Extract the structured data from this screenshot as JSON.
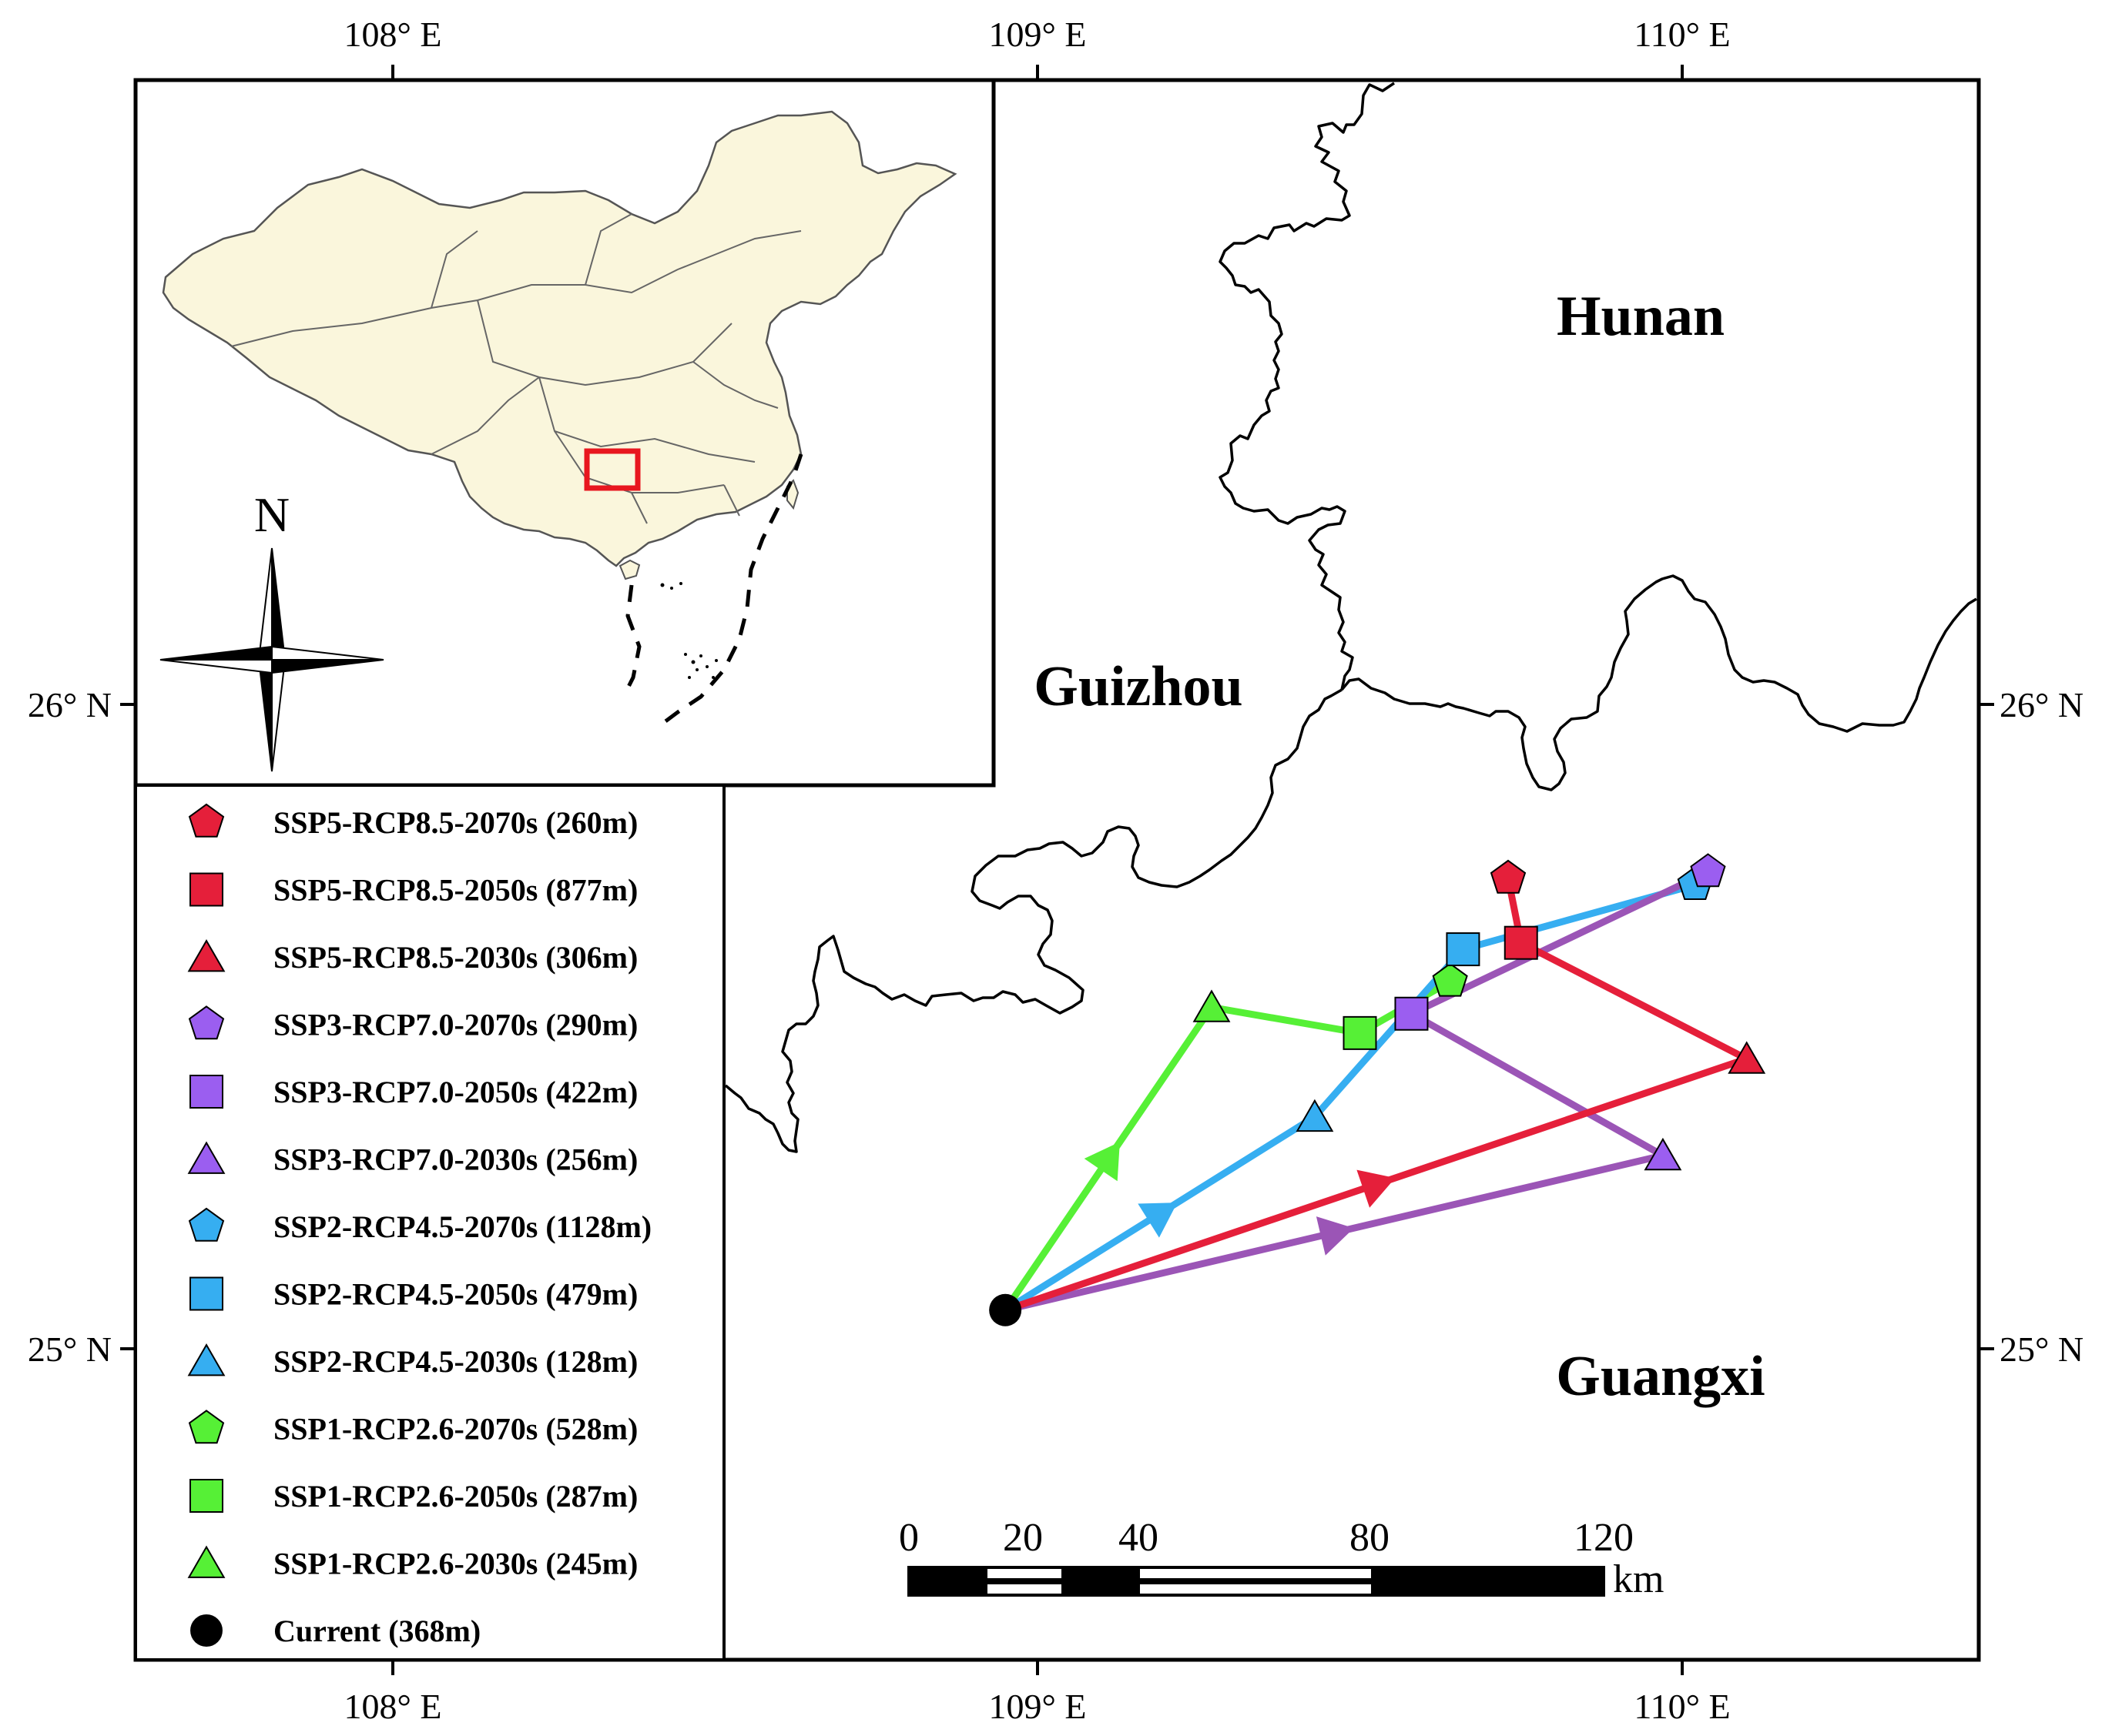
{
  "frame": {
    "top_ticks": [
      "108° E",
      "109° E",
      "110° E"
    ],
    "bottom_ticks": [
      "108° E",
      "109° E",
      "110° E"
    ],
    "left_ticks": [
      "26° N",
      "25° N"
    ],
    "right_ticks": [
      "26° N",
      "25° N"
    ]
  },
  "provinces": {
    "hunan": "Hunan",
    "guizhou": "Guizhou",
    "guangxi": "Guangxi"
  },
  "inset": {
    "north_label": "N",
    "land_color": "#faf6dc",
    "study_area_color": "#e8171f"
  },
  "legend": {
    "items": [
      {
        "label": "SSP5-RCP8.5-2070s (260m)",
        "shape": "pentagon",
        "color": "#e51f3a"
      },
      {
        "label": "SSP5-RCP8.5-2050s (877m)",
        "shape": "square",
        "color": "#e51f3a"
      },
      {
        "label": "SSP5-RCP8.5-2030s (306m)",
        "shape": "triangle",
        "color": "#e51f3a"
      },
      {
        "label": "SSP3-RCP7.0-2070s (290m)",
        "shape": "pentagon",
        "color": "#9b5ef0"
      },
      {
        "label": "SSP3-RCP7.0-2050s (422m)",
        "shape": "square",
        "color": "#9b5ef0"
      },
      {
        "label": "SSP3-RCP7.0-2030s (256m)",
        "shape": "triangle",
        "color": "#9b5ef0"
      },
      {
        "label": "SSP2-RCP4.5-2070s (1128m)",
        "shape": "pentagon",
        "color": "#36aef1"
      },
      {
        "label": "SSP2-RCP4.5-2050s (479m)",
        "shape": "square",
        "color": "#36aef1"
      },
      {
        "label": "SSP2-RCP4.5-2030s (128m)",
        "shape": "triangle",
        "color": "#36aef1"
      },
      {
        "label": "SSP1-RCP2.6-2070s (528m)",
        "shape": "pentagon",
        "color": "#56f036"
      },
      {
        "label": "SSP1-RCP2.6-2050s (287m)",
        "shape": "square",
        "color": "#56f036"
      },
      {
        "label": "SSP1-RCP2.6-2030s (245m)",
        "shape": "triangle",
        "color": "#56f036"
      },
      {
        "label": "Current (368m)",
        "shape": "circle",
        "color": "#000000"
      }
    ]
  },
  "scale_bar": {
    "labels": [
      "0",
      "20",
      "40",
      "80",
      "120"
    ],
    "unit": "km"
  },
  "centroid_paths": [
    {
      "scenario": "SSP1-RCP2.6",
      "color": "#56f036",
      "line_color": "#56f036",
      "points": [
        {
          "lon": 108.95,
          "lat": 25.06
        },
        {
          "lon": 109.27,
          "lat": 25.53
        },
        {
          "lon": 109.5,
          "lat": 25.49
        },
        {
          "lon": 109.64,
          "lat": 25.57
        }
      ]
    },
    {
      "scenario": "SSP2-RCP4.5",
      "color": "#36aef1",
      "line_color": "#36aef1",
      "points": [
        {
          "lon": 108.95,
          "lat": 25.06
        },
        {
          "lon": 109.43,
          "lat": 25.36
        },
        {
          "lon": 109.66,
          "lat": 25.62
        },
        {
          "lon": 110.02,
          "lat": 25.72
        }
      ]
    },
    {
      "scenario": "SSP3-RCP7.0",
      "color": "#9b5ef0",
      "line_color": "#9b55b6",
      "points": [
        {
          "lon": 108.95,
          "lat": 25.06
        },
        {
          "lon": 109.97,
          "lat": 25.3
        },
        {
          "lon": 109.58,
          "lat": 25.52
        },
        {
          "lon": 110.04,
          "lat": 25.74
        }
      ]
    },
    {
      "scenario": "SSP5-RCP8.5",
      "color": "#e51f3a",
      "line_color": "#e51f3a",
      "points": [
        {
          "lon": 108.95,
          "lat": 25.06
        },
        {
          "lon": 110.1,
          "lat": 25.45
        },
        {
          "lon": 109.75,
          "lat": 25.63
        },
        {
          "lon": 109.73,
          "lat": 25.73
        }
      ]
    }
  ]
}
